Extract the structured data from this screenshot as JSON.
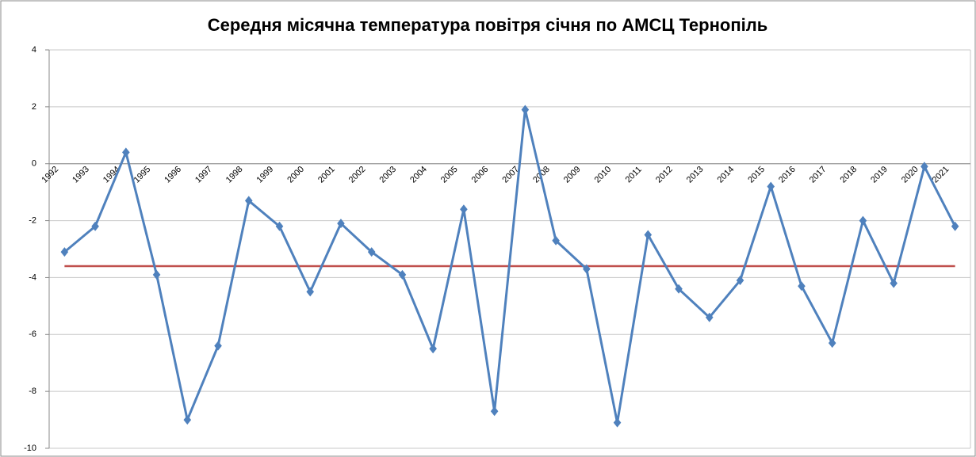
{
  "chart_data": {
    "type": "line",
    "title": "Середня місячна температура повітря січня по АМСЦ Тернопіль",
    "categories": [
      "1992",
      "1993",
      "1994",
      "1995",
      "1996",
      "1997",
      "1998",
      "1999",
      "2000",
      "2001",
      "2002",
      "2003",
      "2004",
      "2005",
      "2006",
      "2007",
      "2008",
      "2009",
      "2010",
      "2011",
      "2012",
      "2013",
      "2014",
      "2015",
      "2016",
      "2017",
      "2018",
      "2019",
      "2020",
      "2021"
    ],
    "series": [
      {
        "color": "#4f81bd",
        "values": [
          -3.1,
          -2.2,
          0.4,
          -3.9,
          -9.0,
          -6.4,
          -1.3,
          -2.2,
          -4.5,
          -2.1,
          -3.1,
          -3.9,
          -6.5,
          -1.6,
          -8.7,
          1.9,
          -2.7,
          -3.7,
          -9.1,
          -2.5,
          -4.4,
          -5.4,
          -4.1,
          -0.8,
          -4.3,
          -6.3,
          -2.0,
          -4.2,
          -0.1,
          -2.2
        ]
      }
    ],
    "reference_line": {
      "value": -3.6,
      "color": "#c0504d"
    },
    "ylim": [
      -10,
      4
    ],
    "yticks": [
      -10,
      -8,
      -6,
      -4,
      -2,
      0,
      2,
      4
    ],
    "grid": true
  }
}
